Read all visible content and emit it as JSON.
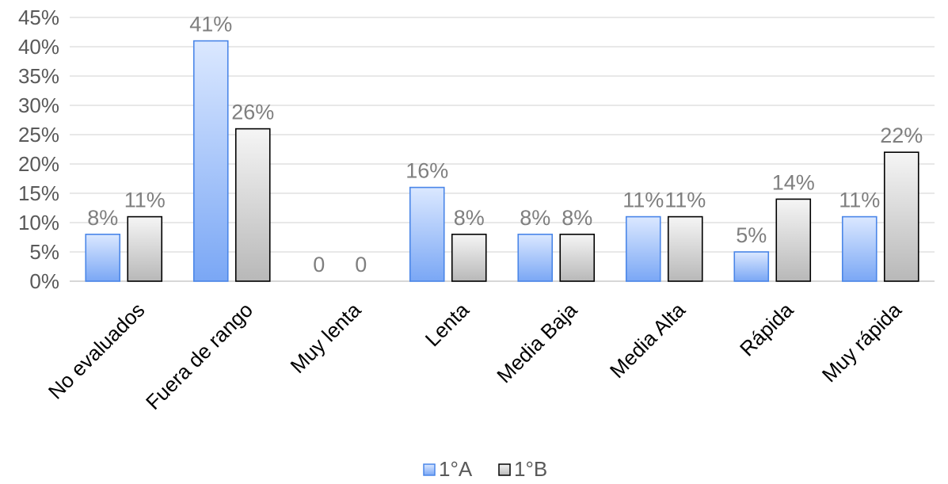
{
  "chart_data": {
    "type": "bar",
    "title": "",
    "xlabel": "",
    "ylabel": "",
    "categories": [
      "No evaluados",
      "Fuera de rango",
      "Muy lenta",
      "Lenta",
      "Media Baja",
      "Media Alta",
      "Rápida",
      "Muy rápida"
    ],
    "series": [
      {
        "name": "1°A",
        "values": [
          8,
          41,
          0,
          16,
          8,
          11,
          5,
          11
        ],
        "labels": [
          "8%",
          "41%",
          "0",
          "16%",
          "8%",
          "11%",
          "5%",
          "11%"
        ]
      },
      {
        "name": "1°B",
        "values": [
          11,
          26,
          0,
          8,
          8,
          11,
          14,
          22
        ],
        "labels": [
          "11%",
          "26%",
          "0",
          "8%",
          "8%",
          "11%",
          "14%",
          "22%"
        ]
      }
    ],
    "ylim": [
      0,
      45
    ],
    "yticks": [
      "0%",
      "5%",
      "10%",
      "15%",
      "20%",
      "25%",
      "30%",
      "35%",
      "40%",
      "45%"
    ],
    "grid": true,
    "legend_position": "bottom",
    "colors": {
      "series_a_fill_top": "#dbe8ff",
      "series_a_fill_bottom": "#7aa7f5",
      "series_a_stroke": "#4a86e8",
      "series_b_fill_top": "#f5f5f5",
      "series_b_fill_bottom": "#b8b8b8",
      "series_b_stroke": "#000000",
      "gridline": "#d9d9d9",
      "axis_text": "#595959",
      "data_label": "#7f7f7f"
    }
  }
}
